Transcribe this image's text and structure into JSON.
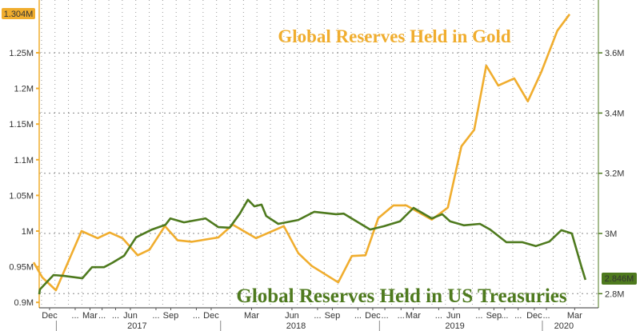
{
  "chart_data": {
    "type": "line",
    "x_unit": "months since Dec 2016",
    "titles": {
      "gold": "Global Reserves Held in Gold",
      "treasuries": "Global Reserves Held in US Treasuries"
    },
    "left_axis": {
      "ylim": [
        0.9,
        1.304
      ],
      "ticks": [
        0.9,
        0.95,
        1.0,
        1.05,
        1.1,
        1.15,
        1.2,
        1.25
      ],
      "tick_labels": [
        "0.9M",
        "0.95M",
        "1M",
        "1.05M",
        "1.1M",
        "1.15M",
        "1.2M",
        "1.25M"
      ]
    },
    "right_axis": {
      "ticks": [
        2.8,
        3.0,
        3.2,
        3.4,
        3.6
      ],
      "tick_labels": [
        "2.8M",
        "3M",
        "3.2M",
        "3.4M",
        "3.6M"
      ]
    },
    "x_ticks": [
      {
        "m": 0,
        "label": "Dec"
      },
      {
        "m": 1.9,
        "label": "..."
      },
      {
        "m": 3,
        "label": "Mar"
      },
      {
        "m": 3.9,
        "label": "..."
      },
      {
        "m": 4.9,
        "label": "..."
      },
      {
        "m": 6,
        "label": "Jun"
      },
      {
        "m": 7.9,
        "label": "..."
      },
      {
        "m": 9,
        "label": "Sep"
      },
      {
        "m": 10.9,
        "label": "..."
      },
      {
        "m": 12,
        "label": "Dec"
      },
      {
        "m": 15,
        "label": "Mar"
      },
      {
        "m": 18,
        "label": "Jun"
      },
      {
        "m": 19.9,
        "label": "..."
      },
      {
        "m": 21,
        "label": "Sep"
      },
      {
        "m": 22.9,
        "label": "..."
      },
      {
        "m": 24,
        "label": "Dec"
      },
      {
        "m": 24.9,
        "label": "..."
      },
      {
        "m": 26.1,
        "label": "..."
      },
      {
        "m": 27,
        "label": "Mar"
      },
      {
        "m": 28.9,
        "label": "..."
      },
      {
        "m": 30,
        "label": "Jun"
      },
      {
        "m": 31.9,
        "label": "..."
      },
      {
        "m": 33,
        "label": "Sep"
      },
      {
        "m": 33.8,
        "label": "..."
      },
      {
        "m": 34.8,
        "label": "..."
      },
      {
        "m": 36,
        "label": "Dec"
      },
      {
        "m": 36.9,
        "label": "..."
      },
      {
        "m": 39,
        "label": "Mar"
      }
    ],
    "years": [
      {
        "m": 6.5,
        "label": "2017"
      },
      {
        "m": 18.3,
        "label": "2018"
      },
      {
        "m": 30.1,
        "label": "2019"
      },
      {
        "m": 38.2,
        "label": "2020"
      }
    ],
    "year_separators": [
      0.5,
      12.7,
      24.5,
      36.6
    ],
    "series": [
      {
        "name": "Global Reserves Held in Gold",
        "axis": "left",
        "color": "#f0ad2e",
        "last_label": "1.304M",
        "x": [
          -1.19,
          -0.54,
          0.47,
          2.37,
          3.57,
          4.46,
          5.41,
          6.54,
          7.43,
          8.56,
          9.51,
          10.57,
          12.53,
          13.6,
          15.33,
          17.4,
          18.47,
          19.48,
          21.44,
          22.45,
          23.46,
          24.41,
          25.54,
          26.49,
          28.39,
          29.58,
          30.59,
          31.54,
          32.43,
          33.32,
          34.51,
          35.52,
          36.52,
          37.71,
          38.62
        ],
        "values": [
          0.956,
          0.935,
          0.917,
          1.0,
          0.99,
          0.998,
          0.99,
          0.966,
          0.974,
          1.007,
          0.987,
          0.985,
          0.991,
          1.009,
          0.99,
          1.007,
          0.969,
          0.951,
          0.928,
          0.965,
          0.966,
          1.018,
          1.036,
          1.036,
          1.016,
          1.033,
          1.119,
          1.142,
          1.232,
          1.204,
          1.214,
          1.182,
          1.223,
          1.281,
          1.304
        ]
      },
      {
        "name": "Global Reserves Held in US Treasuries",
        "axis": "right",
        "color": "#4e7a1e",
        "last_label": "2.846M",
        "x": [
          -0.77,
          -0.72,
          0.29,
          1.07,
          2.43,
          3.15,
          4.04,
          4.64,
          5.53,
          6.42,
          7.6,
          8.61,
          8.97,
          9.98,
          11.58,
          12.53,
          13.37,
          14.13,
          14.73,
          15.21,
          15.74,
          16.09,
          16.98,
          18.47,
          19.66,
          21.27,
          21.85,
          23.81,
          24.82,
          26.02,
          27.03,
          28.39,
          29.16,
          29.75,
          30.76,
          31.96,
          32.72,
          33.92,
          35.1,
          36.11,
          37.12,
          38.01,
          38.79,
          39.49,
          39.8
        ],
        "values": [
          2.798,
          2.814,
          2.862,
          2.859,
          2.851,
          2.888,
          2.888,
          2.902,
          2.926,
          2.987,
          3.013,
          3.029,
          3.05,
          3.037,
          3.05,
          3.021,
          3.019,
          3.066,
          3.112,
          3.09,
          3.096,
          3.058,
          3.032,
          3.045,
          3.072,
          3.064,
          3.066,
          3.013,
          3.024,
          3.04,
          3.085,
          3.05,
          3.064,
          3.04,
          3.027,
          3.032,
          3.013,
          2.971,
          2.971,
          2.958,
          2.973,
          3.011,
          3.0,
          2.891,
          2.846
        ]
      }
    ]
  }
}
